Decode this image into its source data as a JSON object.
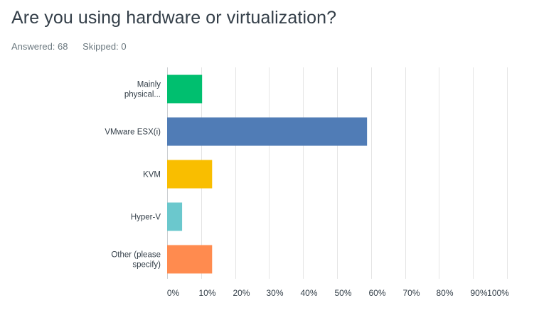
{
  "question": {
    "title": "Are you using hardware or virtualization?",
    "answered_label": "Answered: 68",
    "skipped_label": "Skipped: 0"
  },
  "chart_data": {
    "type": "bar",
    "orientation": "horizontal",
    "categories": [
      [
        "Mainly",
        "physical..."
      ],
      [
        "VMware ESX(i)"
      ],
      [
        "KVM"
      ],
      [
        "Hyper-V"
      ],
      [
        "Other (please",
        "specify)"
      ]
    ],
    "values": [
      10.29,
      58.82,
      13.24,
      4.41,
      13.24
    ],
    "colors": [
      "#00bf6f",
      "#507cb6",
      "#f9be00",
      "#6bc8cd",
      "#ff8b4f"
    ],
    "xlim": [
      0,
      100
    ],
    "xticks": [
      "0%",
      "10%",
      "20%",
      "30%",
      "40%",
      "50%",
      "60%",
      "70%",
      "80%",
      "90%",
      "100%"
    ],
    "grid": true,
    "grid_color": "#e5e5e5"
  }
}
